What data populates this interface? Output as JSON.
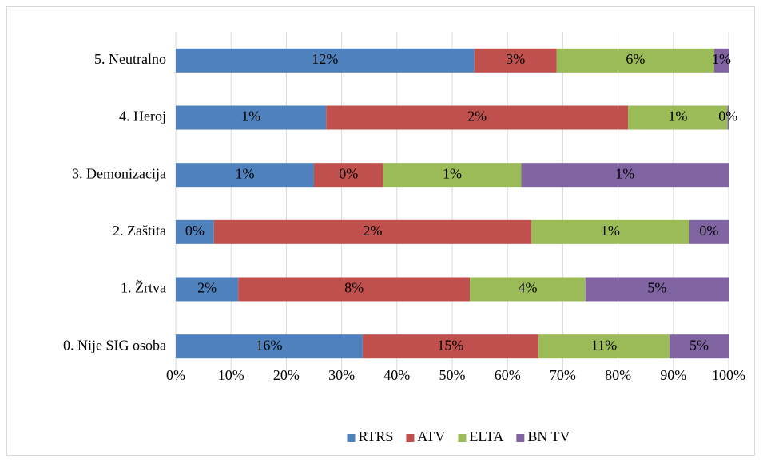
{
  "chart_data": {
    "type": "stacked_barh",
    "categories": [
      "0. Nije SIG osoba",
      "1. Žrtva",
      "2. Zaštita",
      "3. Demonizacija",
      "4. Heroj",
      "5. Neutralno"
    ],
    "series": [
      {
        "name": "RTRS",
        "color": "#4f81bd",
        "values": [
          33.8,
          11.3,
          6.9,
          25,
          27.2,
          54.0
        ],
        "labels": [
          "16%",
          "2%",
          "0%",
          "1%",
          "1%",
          "12%"
        ]
      },
      {
        "name": "ATV",
        "color": "#c0504d",
        "values": [
          31.8,
          41.9,
          57.4,
          12.5,
          54.6,
          14.9
        ],
        "labels": [
          "15%",
          "8%",
          "2%",
          "0%",
          "2%",
          "3%"
        ]
      },
      {
        "name": "ELTA",
        "color": "#9bbb59",
        "values": [
          23.7,
          20.9,
          28.6,
          25,
          18.0,
          28.5
        ],
        "labels": [
          "11%",
          "4%",
          "1%",
          "1%",
          "1%",
          "6%"
        ]
      },
      {
        "name": "BN TV",
        "color": "#8064a2",
        "values": [
          10.7,
          25.9,
          7.1,
          37.5,
          0.2,
          2.6
        ],
        "labels": [
          "5%",
          "5%",
          "0%",
          "1%",
          "0%",
          "1%"
        ]
      }
    ],
    "xlim": [
      0,
      100
    ],
    "xticks": [
      {
        "value": 0,
        "label": "0%"
      },
      {
        "value": 10,
        "label": "10%"
      },
      {
        "value": 20,
        "label": "20%"
      },
      {
        "value": 30,
        "label": "30%"
      },
      {
        "value": 40,
        "label": "40%"
      },
      {
        "value": 50,
        "label": "50%"
      },
      {
        "value": 60,
        "label": "60%"
      },
      {
        "value": 70,
        "label": "70%"
      },
      {
        "value": 80,
        "label": "80%"
      },
      {
        "value": 90,
        "label": "90%"
      },
      {
        "value": 100,
        "label": "100%"
      }
    ],
    "grid": true,
    "legend": "bottom"
  }
}
